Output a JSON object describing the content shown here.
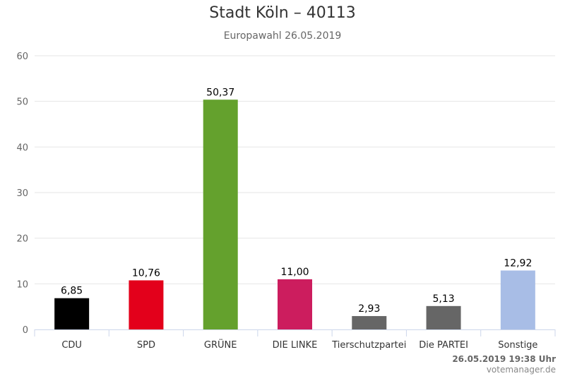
{
  "chart_data": {
    "type": "bar",
    "title": "Stadt Köln – 40113",
    "subtitle": "Europawahl 26.05.2019",
    "categories": [
      "CDU",
      "SPD",
      "GRÜNE",
      "DIE LINKE",
      "Tierschutzpartei",
      "Die PARTEI",
      "Sonstige"
    ],
    "values": [
      6.85,
      10.76,
      50.37,
      11.0,
      2.93,
      5.13,
      12.92
    ],
    "value_labels": [
      "6,85",
      "10,76",
      "50,37",
      "11,00",
      "2,93",
      "5,13",
      "12,92"
    ],
    "colors": [
      "#000000",
      "#e3001b",
      "#64a12d",
      "#cc1d5e",
      "#666666",
      "#666666",
      "#a8bde6"
    ],
    "yticks": [
      "0",
      "10",
      "20",
      "30",
      "40",
      "50",
      "60"
    ],
    "ylim": [
      0,
      60
    ],
    "grid": true,
    "legend": "none"
  },
  "footer": {
    "timestamp": "26.05.2019 19:38 Uhr",
    "credit": "votemanager.de"
  }
}
